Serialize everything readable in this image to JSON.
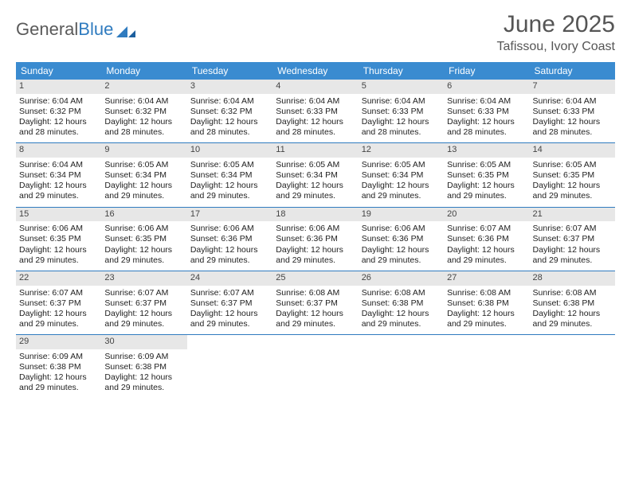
{
  "brand": {
    "part1": "General",
    "part2": "Blue"
  },
  "header": {
    "month": "June 2025",
    "location": "Tafissou, Ivory Coast"
  },
  "colors": {
    "header_bg": "#3a8bd0",
    "week_divider": "#2f7bbf",
    "daynum_bg": "#e7e7e7",
    "text": "#222222",
    "muted": "#555555"
  },
  "weekdays": [
    "Sunday",
    "Monday",
    "Tuesday",
    "Wednesday",
    "Thursday",
    "Friday",
    "Saturday"
  ],
  "start_offset": 0,
  "days": [
    {
      "n": 1,
      "sunrise": "6:04 AM",
      "sunset": "6:32 PM",
      "daylight": "12 hours and 28 minutes."
    },
    {
      "n": 2,
      "sunrise": "6:04 AM",
      "sunset": "6:32 PM",
      "daylight": "12 hours and 28 minutes."
    },
    {
      "n": 3,
      "sunrise": "6:04 AM",
      "sunset": "6:32 PM",
      "daylight": "12 hours and 28 minutes."
    },
    {
      "n": 4,
      "sunrise": "6:04 AM",
      "sunset": "6:33 PM",
      "daylight": "12 hours and 28 minutes."
    },
    {
      "n": 5,
      "sunrise": "6:04 AM",
      "sunset": "6:33 PM",
      "daylight": "12 hours and 28 minutes."
    },
    {
      "n": 6,
      "sunrise": "6:04 AM",
      "sunset": "6:33 PM",
      "daylight": "12 hours and 28 minutes."
    },
    {
      "n": 7,
      "sunrise": "6:04 AM",
      "sunset": "6:33 PM",
      "daylight": "12 hours and 28 minutes."
    },
    {
      "n": 8,
      "sunrise": "6:04 AM",
      "sunset": "6:34 PM",
      "daylight": "12 hours and 29 minutes."
    },
    {
      "n": 9,
      "sunrise": "6:05 AM",
      "sunset": "6:34 PM",
      "daylight": "12 hours and 29 minutes."
    },
    {
      "n": 10,
      "sunrise": "6:05 AM",
      "sunset": "6:34 PM",
      "daylight": "12 hours and 29 minutes."
    },
    {
      "n": 11,
      "sunrise": "6:05 AM",
      "sunset": "6:34 PM",
      "daylight": "12 hours and 29 minutes."
    },
    {
      "n": 12,
      "sunrise": "6:05 AM",
      "sunset": "6:34 PM",
      "daylight": "12 hours and 29 minutes."
    },
    {
      "n": 13,
      "sunrise": "6:05 AM",
      "sunset": "6:35 PM",
      "daylight": "12 hours and 29 minutes."
    },
    {
      "n": 14,
      "sunrise": "6:05 AM",
      "sunset": "6:35 PM",
      "daylight": "12 hours and 29 minutes."
    },
    {
      "n": 15,
      "sunrise": "6:06 AM",
      "sunset": "6:35 PM",
      "daylight": "12 hours and 29 minutes."
    },
    {
      "n": 16,
      "sunrise": "6:06 AM",
      "sunset": "6:35 PM",
      "daylight": "12 hours and 29 minutes."
    },
    {
      "n": 17,
      "sunrise": "6:06 AM",
      "sunset": "6:36 PM",
      "daylight": "12 hours and 29 minutes."
    },
    {
      "n": 18,
      "sunrise": "6:06 AM",
      "sunset": "6:36 PM",
      "daylight": "12 hours and 29 minutes."
    },
    {
      "n": 19,
      "sunrise": "6:06 AM",
      "sunset": "6:36 PM",
      "daylight": "12 hours and 29 minutes."
    },
    {
      "n": 20,
      "sunrise": "6:07 AM",
      "sunset": "6:36 PM",
      "daylight": "12 hours and 29 minutes."
    },
    {
      "n": 21,
      "sunrise": "6:07 AM",
      "sunset": "6:37 PM",
      "daylight": "12 hours and 29 minutes."
    },
    {
      "n": 22,
      "sunrise": "6:07 AM",
      "sunset": "6:37 PM",
      "daylight": "12 hours and 29 minutes."
    },
    {
      "n": 23,
      "sunrise": "6:07 AM",
      "sunset": "6:37 PM",
      "daylight": "12 hours and 29 minutes."
    },
    {
      "n": 24,
      "sunrise": "6:07 AM",
      "sunset": "6:37 PM",
      "daylight": "12 hours and 29 minutes."
    },
    {
      "n": 25,
      "sunrise": "6:08 AM",
      "sunset": "6:37 PM",
      "daylight": "12 hours and 29 minutes."
    },
    {
      "n": 26,
      "sunrise": "6:08 AM",
      "sunset": "6:38 PM",
      "daylight": "12 hours and 29 minutes."
    },
    {
      "n": 27,
      "sunrise": "6:08 AM",
      "sunset": "6:38 PM",
      "daylight": "12 hours and 29 minutes."
    },
    {
      "n": 28,
      "sunrise": "6:08 AM",
      "sunset": "6:38 PM",
      "daylight": "12 hours and 29 minutes."
    },
    {
      "n": 29,
      "sunrise": "6:09 AM",
      "sunset": "6:38 PM",
      "daylight": "12 hours and 29 minutes."
    },
    {
      "n": 30,
      "sunrise": "6:09 AM",
      "sunset": "6:38 PM",
      "daylight": "12 hours and 29 minutes."
    }
  ],
  "labels": {
    "sunrise": "Sunrise:",
    "sunset": "Sunset:",
    "daylight": "Daylight:"
  }
}
